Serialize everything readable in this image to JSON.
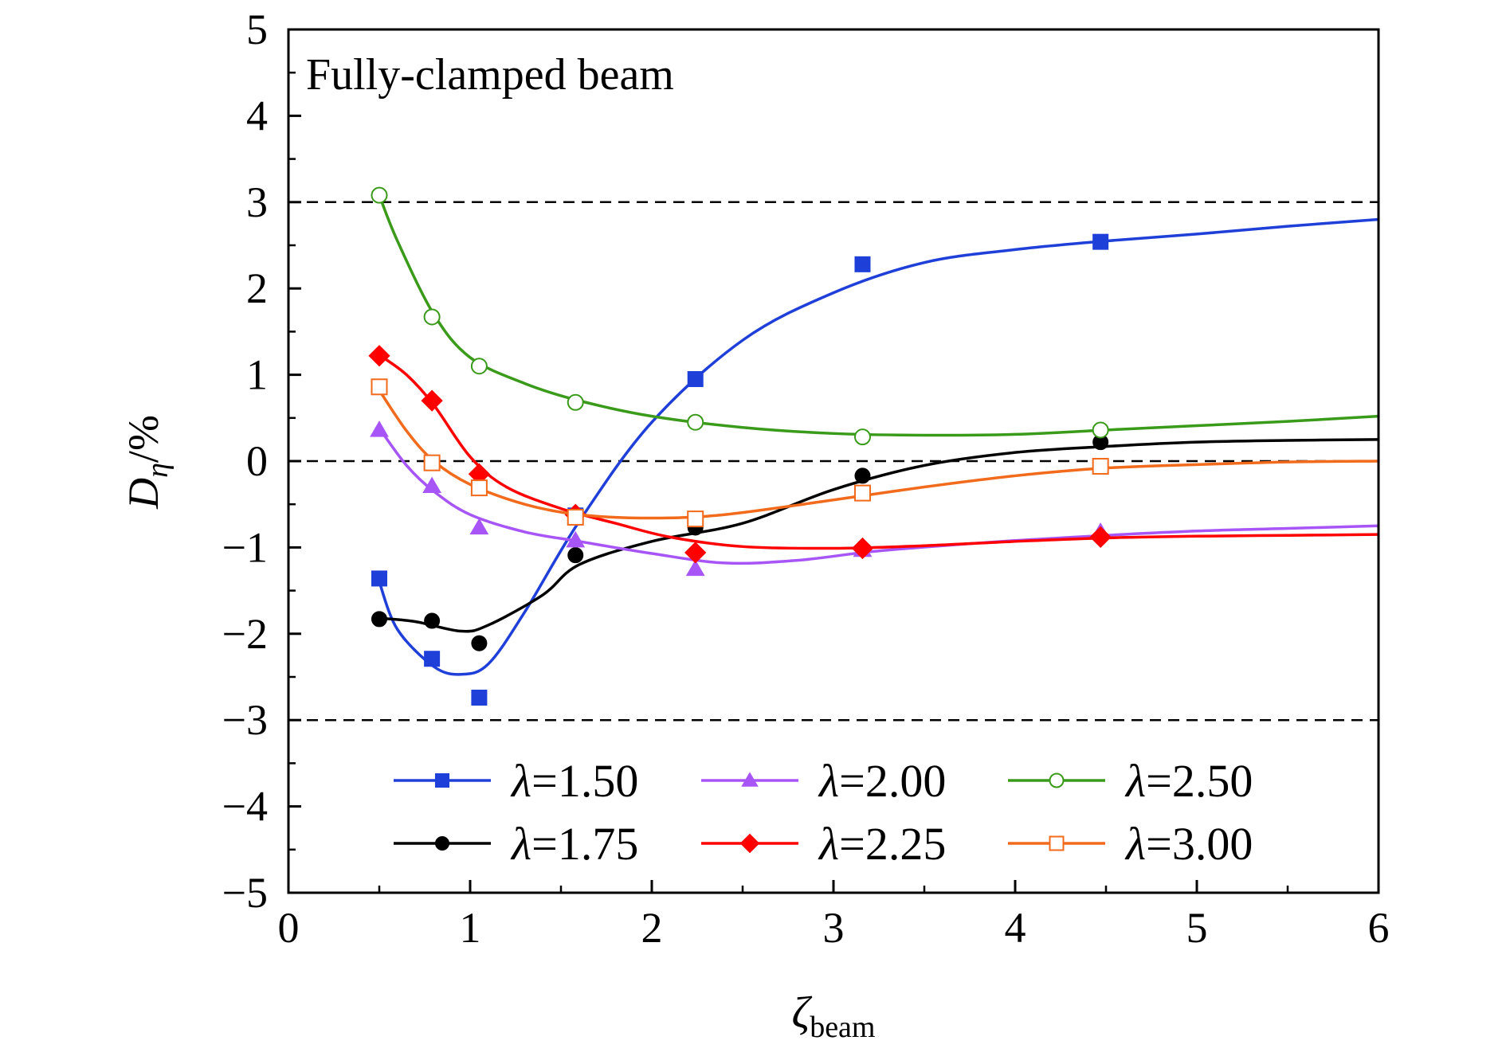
{
  "chart_data": {
    "type": "line",
    "annotation": "Fully-clamped beam",
    "xlabel": {
      "main": "ζ",
      "sub": "beam"
    },
    "ylabel": {
      "main": "D",
      "sub": "η",
      "suffix": "/%"
    },
    "xlim": [
      0,
      6
    ],
    "ylim": [
      -5,
      5
    ],
    "xticks": [
      "0",
      "1",
      "2",
      "3",
      "4",
      "5",
      "6"
    ],
    "yticks": [
      "−5",
      "−4",
      "−3",
      "−2",
      "−1",
      "0",
      "1",
      "2",
      "3",
      "4",
      "5"
    ],
    "reference_lines": [
      3,
      0,
      -3
    ],
    "legend": {
      "position": "bottom-center",
      "columns": 3,
      "symbol": "λ",
      "eq": "="
    },
    "x": [
      0.5,
      0.79,
      1.05,
      1.58,
      2.24,
      3.16,
      4.47
    ],
    "series": [
      {
        "name": "1.50",
        "color": "#1f3fd9",
        "marker": "square",
        "filled": true,
        "values": [
          -1.36,
          -2.29,
          -2.74,
          -0.63,
          0.95,
          2.28,
          2.54
        ],
        "fit": [
          [
            0.5,
            -1.4
          ],
          [
            0.6,
            -1.95
          ],
          [
            0.8,
            -2.38
          ],
          [
            0.95,
            -2.47
          ],
          [
            1.1,
            -2.35
          ],
          [
            1.3,
            -1.75
          ],
          [
            1.6,
            -0.7
          ],
          [
            2.0,
            0.45
          ],
          [
            2.5,
            1.4
          ],
          [
            3.0,
            1.95
          ],
          [
            3.5,
            2.3
          ],
          [
            4.0,
            2.45
          ],
          [
            4.5,
            2.55
          ],
          [
            5.0,
            2.63
          ],
          [
            5.5,
            2.72
          ],
          [
            6.0,
            2.8
          ]
        ]
      },
      {
        "name": "1.75",
        "color": "#000000",
        "marker": "circle",
        "filled": true,
        "values": [
          -1.83,
          -1.85,
          -2.11,
          -1.09,
          -0.77,
          -0.17,
          0.22
        ],
        "fit": [
          [
            0.5,
            -1.82
          ],
          [
            0.7,
            -1.86
          ],
          [
            0.95,
            -1.97
          ],
          [
            1.1,
            -1.9
          ],
          [
            1.4,
            -1.55
          ],
          [
            1.6,
            -1.2
          ],
          [
            2.0,
            -0.93
          ],
          [
            2.5,
            -0.72
          ],
          [
            3.0,
            -0.33
          ],
          [
            3.5,
            -0.05
          ],
          [
            4.0,
            0.1
          ],
          [
            4.5,
            0.17
          ],
          [
            5.0,
            0.22
          ],
          [
            5.5,
            0.24
          ],
          [
            6.0,
            0.25
          ]
        ]
      },
      {
        "name": "2.00",
        "color": "#a855f7",
        "marker": "triangle",
        "filled": true,
        "values": [
          0.36,
          -0.29,
          -0.77,
          -0.92,
          -1.25,
          -1.03,
          -0.82
        ],
        "fit": [
          [
            0.5,
            0.38
          ],
          [
            0.65,
            -0.05
          ],
          [
            0.8,
            -0.35
          ],
          [
            1.0,
            -0.62
          ],
          [
            1.3,
            -0.82
          ],
          [
            1.6,
            -0.93
          ],
          [
            2.0,
            -1.07
          ],
          [
            2.4,
            -1.18
          ],
          [
            2.8,
            -1.15
          ],
          [
            3.2,
            -1.05
          ],
          [
            3.6,
            -0.98
          ],
          [
            4.0,
            -0.92
          ],
          [
            4.5,
            -0.86
          ],
          [
            5.0,
            -0.81
          ],
          [
            5.5,
            -0.78
          ],
          [
            6.0,
            -0.75
          ]
        ]
      },
      {
        "name": "2.25",
        "color": "#ff0000",
        "marker": "diamond",
        "filled": true,
        "values": [
          1.22,
          0.7,
          -0.15,
          -0.62,
          -1.06,
          -1.01,
          -0.88
        ],
        "fit": [
          [
            0.5,
            1.23
          ],
          [
            0.65,
            1.0
          ],
          [
            0.8,
            0.65
          ],
          [
            1.0,
            0.05
          ],
          [
            1.2,
            -0.3
          ],
          [
            1.5,
            -0.55
          ],
          [
            1.8,
            -0.72
          ],
          [
            2.1,
            -0.88
          ],
          [
            2.5,
            -0.99
          ],
          [
            3.0,
            -1.01
          ],
          [
            3.5,
            -0.98
          ],
          [
            4.0,
            -0.93
          ],
          [
            4.5,
            -0.89
          ],
          [
            5.0,
            -0.87
          ],
          [
            5.5,
            -0.86
          ],
          [
            6.0,
            -0.85
          ]
        ]
      },
      {
        "name": "2.50",
        "color": "#3a9a1a",
        "marker": "circle",
        "filled": false,
        "values": [
          3.08,
          1.67,
          1.1,
          0.68,
          0.45,
          0.28,
          0.36
        ],
        "fit": [
          [
            0.5,
            3.08
          ],
          [
            0.6,
            2.55
          ],
          [
            0.8,
            1.7
          ],
          [
            1.0,
            1.2
          ],
          [
            1.3,
            0.9
          ],
          [
            1.6,
            0.7
          ],
          [
            2.0,
            0.52
          ],
          [
            2.5,
            0.39
          ],
          [
            3.0,
            0.32
          ],
          [
            3.5,
            0.3
          ],
          [
            4.0,
            0.31
          ],
          [
            4.5,
            0.36
          ],
          [
            5.0,
            0.41
          ],
          [
            5.5,
            0.46
          ],
          [
            6.0,
            0.52
          ]
        ]
      },
      {
        "name": "3.00",
        "color": "#f26a1b",
        "marker": "square",
        "filled": false,
        "values": [
          0.86,
          -0.02,
          -0.31,
          -0.65,
          -0.67,
          -0.37,
          -0.06
        ],
        "fit": [
          [
            0.5,
            0.82
          ],
          [
            0.65,
            0.35
          ],
          [
            0.8,
            0.0
          ],
          [
            1.0,
            -0.27
          ],
          [
            1.3,
            -0.5
          ],
          [
            1.6,
            -0.62
          ],
          [
            2.0,
            -0.66
          ],
          [
            2.4,
            -0.62
          ],
          [
            3.0,
            -0.45
          ],
          [
            3.5,
            -0.3
          ],
          [
            4.0,
            -0.17
          ],
          [
            4.5,
            -0.08
          ],
          [
            5.0,
            -0.04
          ],
          [
            5.5,
            -0.01
          ],
          [
            6.0,
            0.0
          ]
        ]
      }
    ]
  }
}
